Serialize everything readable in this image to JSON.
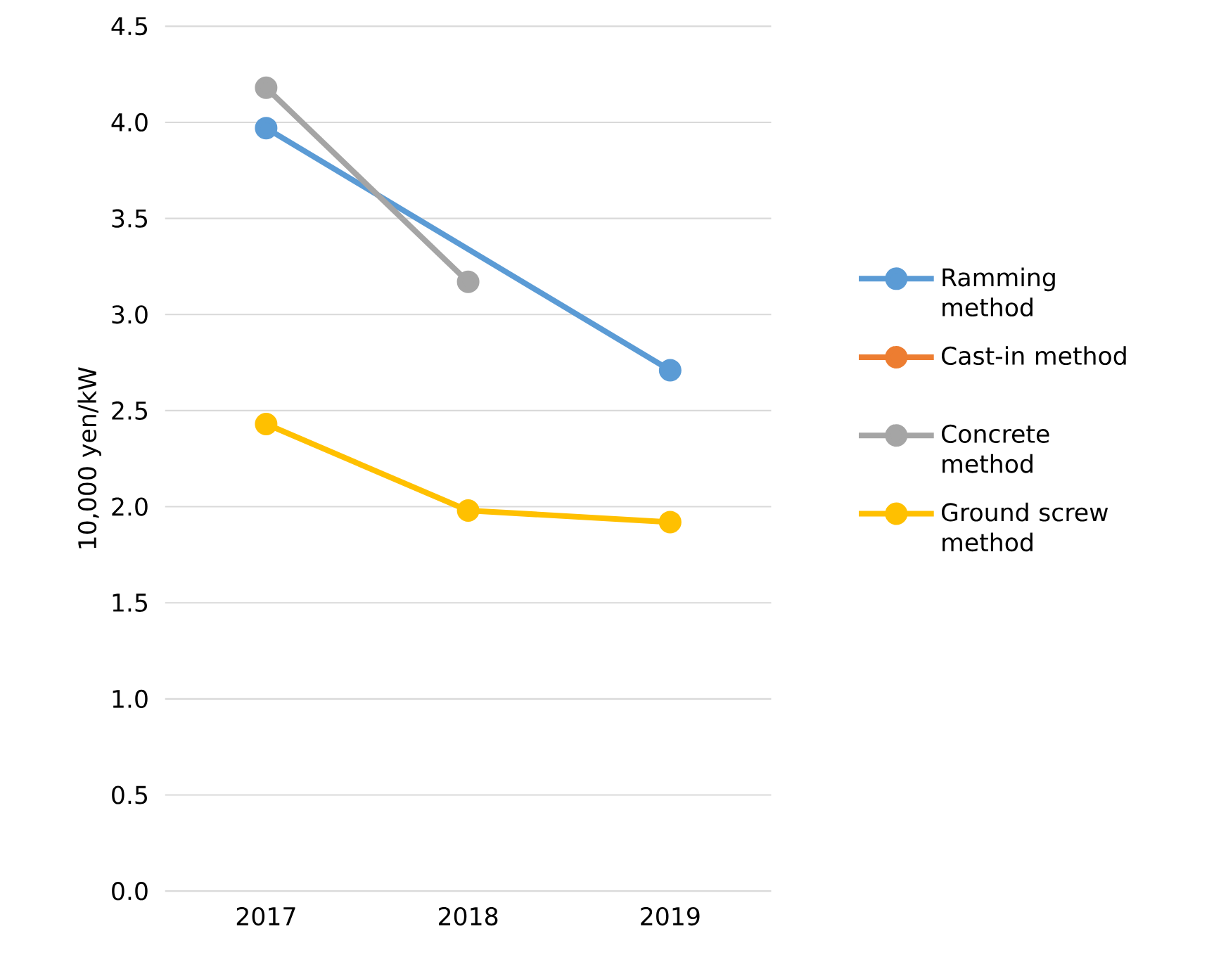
{
  "chart_data": {
    "type": "line",
    "ylabel": "10,000 yen/kW",
    "categories": [
      "2017",
      "2018",
      "2019"
    ],
    "series": [
      {
        "name": "Ramming method",
        "color": "#5b9bd5",
        "values": [
          3.97,
          null,
          2.71
        ]
      },
      {
        "name": "Cast-in method",
        "color": "#ed7d31",
        "values": [
          null,
          null,
          null
        ]
      },
      {
        "name": "Concrete method",
        "color": "#a5a5a5",
        "values": [
          4.18,
          3.17,
          null
        ]
      },
      {
        "name": "Ground screw method",
        "color": "#ffc000",
        "values": [
          2.43,
          1.98,
          1.92
        ]
      }
    ],
    "ylim": [
      0,
      4.5
    ],
    "yticks": [
      {
        "value": 0,
        "label": "0.0"
      },
      0.5,
      {
        "value": 1,
        "label": "1.0"
      },
      1.5,
      {
        "value": 2,
        "label": "2.0"
      },
      2.5,
      {
        "value": 3,
        "label": "3.0"
      },
      3.5,
      {
        "value": 4,
        "label": "4.0"
      },
      4.5
    ],
    "grid": "y",
    "legend": "right",
    "marker": "circle",
    "line_style": "solid"
  }
}
